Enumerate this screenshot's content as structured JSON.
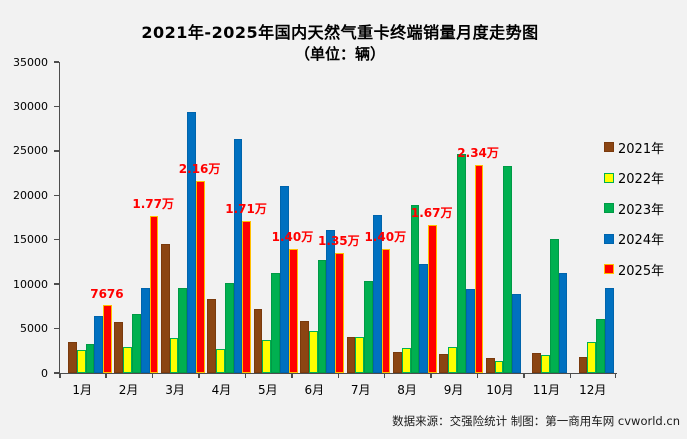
{
  "title": "2021年-2025年国内天然气重卡终端销量月度走势图",
  "subtitle": "（单位：辆）",
  "footer": "数据来源：交强险统计  制图：第一商用车网 cvworld.cn",
  "colors": {
    "background": "#F2F2F2",
    "axis": "#4d4d4d",
    "data_label": "#FF0000"
  },
  "chart_data": {
    "type": "bar",
    "title": "2021年-2025年国内天然气重卡终端销量月度走势图",
    "unit_label": "（单位：辆）",
    "categories": [
      "1月",
      "2月",
      "3月",
      "4月",
      "5月",
      "6月",
      "7月",
      "8月",
      "9月",
      "10月",
      "11月",
      "12月"
    ],
    "series": [
      {
        "name": "2021年",
        "fill": "#8B4513",
        "border": "#7A3A0D",
        "values": [
          3500,
          5700,
          14500,
          8300,
          7200,
          5900,
          4000,
          2400,
          2100,
          1700,
          2200,
          1800
        ]
      },
      {
        "name": "2022年",
        "fill": "#FFFF00",
        "border": "#00B050",
        "values": [
          2600,
          2900,
          3900,
          2700,
          3700,
          4700,
          4100,
          2800,
          2900,
          1400,
          2000,
          3500
        ]
      },
      {
        "name": "2023年",
        "fill": "#00B050",
        "border": "#009A46",
        "values": [
          3300,
          6600,
          9600,
          10100,
          11300,
          12700,
          10400,
          18900,
          24600,
          23300,
          15100,
          6100
        ]
      },
      {
        "name": "2024年",
        "fill": "#0070C0",
        "border": "#0064AC",
        "values": [
          6400,
          9600,
          29400,
          26300,
          21000,
          16100,
          17800,
          12300,
          9500,
          8900,
          11300,
          9600
        ]
      },
      {
        "name": "2025年",
        "fill": "#FF0000",
        "border": "#FFC000",
        "values": [
          7676,
          17700,
          21600,
          17100,
          14000,
          13500,
          14000,
          16700,
          23400,
          null,
          null,
          null
        ],
        "data_labels": [
          "7676",
          "1.77万",
          "2.16万",
          "1.71万",
          "1.40万",
          "1.35万",
          "1.40万",
          "1.67万",
          "2.34万",
          "",
          "",
          ""
        ]
      }
    ],
    "ylim": [
      0,
      35000
    ],
    "yticks": [
      0,
      5000,
      10000,
      15000,
      20000,
      25000,
      30000,
      35000
    ],
    "grid": false,
    "legend_position": "right"
  }
}
